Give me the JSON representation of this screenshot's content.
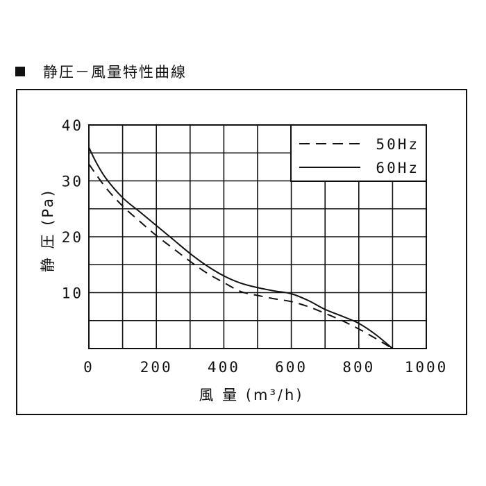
{
  "title": "静圧－風量特性曲線",
  "chart_data": {
    "type": "line",
    "xlabel": "風 量 (m³/h)",
    "ylabel": "静 圧 (Pa)",
    "xlim": [
      0,
      1000
    ],
    "ylim": [
      0,
      40
    ],
    "x_ticks": [
      "0",
      "200",
      "400",
      "600",
      "800",
      "1000"
    ],
    "y_ticks": [
      "10",
      "20",
      "30",
      "40"
    ],
    "grid": true,
    "legend_position": "top-right",
    "series": [
      {
        "name": "50Hz",
        "style": "dashed",
        "color": "#111111",
        "x": [
          0,
          50,
          100,
          150,
          200,
          250,
          300,
          350,
          400,
          450,
          500,
          550,
          600,
          650,
          700,
          750,
          800,
          850,
          900
        ],
        "y": [
          33,
          28.8,
          25.5,
          22.8,
          20.2,
          17.9,
          15.6,
          13.5,
          11.8,
          10.2,
          9.5,
          8.9,
          8.4,
          7.5,
          6.3,
          5.0,
          3.5,
          1.8,
          0
        ]
      },
      {
        "name": "60Hz",
        "style": "solid",
        "color": "#111111",
        "x": [
          0,
          20,
          50,
          100,
          150,
          200,
          250,
          300,
          350,
          400,
          450,
          500,
          550,
          600,
          650,
          700,
          750,
          800,
          850,
          900
        ],
        "y": [
          36,
          33.5,
          30.5,
          27.0,
          24.5,
          22.0,
          19.5,
          17.0,
          14.8,
          13.0,
          11.7,
          10.9,
          10.3,
          9.8,
          8.6,
          7.0,
          5.8,
          4.5,
          2.5,
          0
        ]
      }
    ]
  }
}
